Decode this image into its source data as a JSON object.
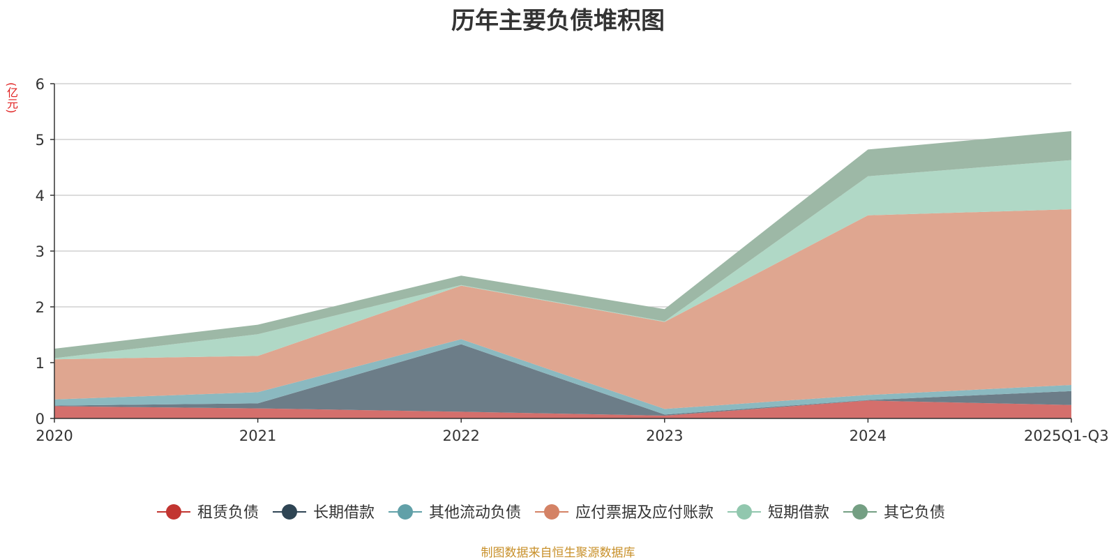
{
  "chart_data": {
    "type": "area",
    "stacked": true,
    "title": "历年主要负债堆积图",
    "unit": "(亿元)",
    "source": "制图数据来自恒生聚源数据库",
    "categories": [
      "2020",
      "2021",
      "2022",
      "2023",
      "2024",
      "2025Q1-Q3"
    ],
    "ylim": [
      0,
      6
    ],
    "yticks": [
      0,
      1,
      2,
      3,
      4,
      5,
      6
    ],
    "grid": true,
    "legend_position": "bottom",
    "series": [
      {
        "name": "租赁负债",
        "color": "#c23531",
        "fill": "#d46f6c",
        "values": [
          0.22,
          0.18,
          0.12,
          0.05,
          0.32,
          0.24
        ]
      },
      {
        "name": "长期借款",
        "color": "#2f4554",
        "fill": "#6c7d88",
        "values": [
          0.01,
          0.09,
          1.21,
          0.02,
          0.01,
          0.25
        ]
      },
      {
        "name": "其他流动负债",
        "color": "#61a0a8",
        "fill": "#8bb9c0",
        "values": [
          0.11,
          0.2,
          0.09,
          0.1,
          0.09,
          0.11
        ]
      },
      {
        "name": "应付票据及应付账款",
        "color": "#d48265",
        "fill": "#dfa690",
        "values": [
          0.72,
          0.65,
          0.96,
          1.56,
          3.22,
          3.15
        ]
      },
      {
        "name": "短期借款",
        "color": "#91c7ae",
        "fill": "#b0d8c6",
        "values": [
          0.02,
          0.39,
          0.01,
          0.01,
          0.7,
          0.88
        ]
      },
      {
        "name": "其它负债",
        "color": "#749f83",
        "fill": "#9db8a6",
        "values": [
          0.17,
          0.17,
          0.17,
          0.22,
          0.48,
          0.52
        ]
      }
    ]
  }
}
